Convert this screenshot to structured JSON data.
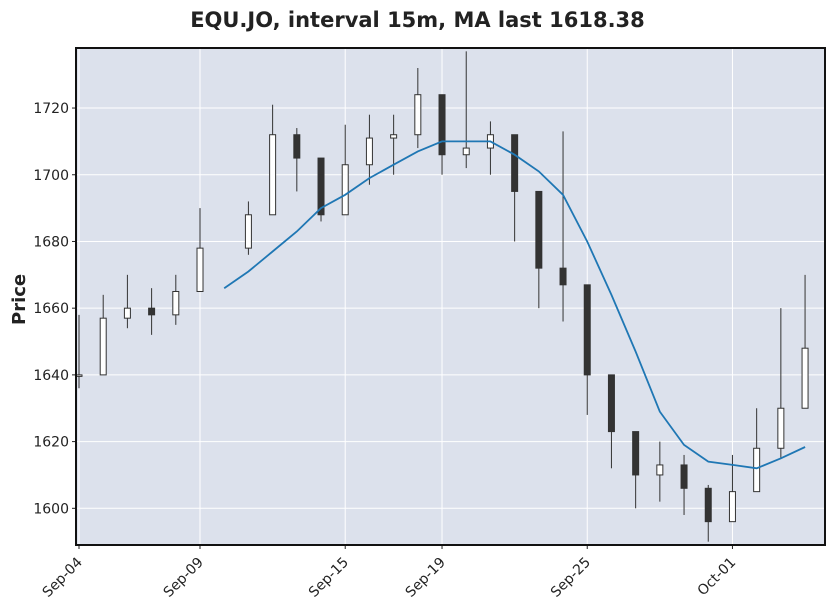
{
  "chart_data": {
    "type": "candlestick",
    "title": "EQU.JO, interval 15m, MA last 1618.38",
    "ylabel": "Price",
    "xlabel": "",
    "ylim": [
      1589,
      1738
    ],
    "yticks": [
      1600,
      1620,
      1640,
      1660,
      1680,
      1700,
      1720
    ],
    "xticks": [
      "Sep-04",
      "Sep-09",
      "Sep-15",
      "Sep-19",
      "Sep-25",
      "Oct-01"
    ],
    "grid": true,
    "colors": {
      "background": "#dce1ec",
      "grid": "#ffffff",
      "candle": "#333333",
      "ma": "#1f77b4"
    },
    "price_series": {
      "name": "close",
      "x": [
        "Sep-04",
        "Sep-05",
        "Sep-06",
        "Sep-07",
        "Sep-08",
        "Sep-09",
        "Sep-11",
        "Sep-12",
        "Sep-13",
        "Sep-14",
        "Sep-15",
        "Sep-16",
        "Sep-17",
        "Sep-18",
        "Sep-19",
        "Sep-20",
        "Sep-21",
        "Sep-22",
        "Sep-23",
        "Sep-24",
        "Sep-25",
        "Sep-26",
        "Sep-27",
        "Sep-28",
        "Sep-29",
        "Sep-30",
        "Oct-01",
        "Oct-02",
        "Oct-03",
        "Oct-04"
      ],
      "values": [
        1640,
        1657,
        1660,
        1658,
        1665,
        1678,
        1688,
        1712,
        1705,
        1688,
        1703,
        1711,
        1712,
        1724,
        1706,
        1708,
        1712,
        1695,
        1672,
        1667,
        1640,
        1623,
        1610,
        1613,
        1606,
        1596,
        1605,
        1618,
        1630,
        1648
      ],
      "high": [
        1658,
        1664,
        1670,
        1666,
        1670,
        1690,
        1692,
        1721,
        1714,
        1700,
        1715,
        1718,
        1718,
        1732,
        1720,
        1737,
        1716,
        1706,
        1684,
        1713,
        1648,
        1640,
        1622,
        1620,
        1616,
        1607,
        1616,
        1630,
        1660,
        1670
      ],
      "low": [
        1636,
        1650,
        1654,
        1652,
        1655,
        1672,
        1676,
        1700,
        1695,
        1686,
        1690,
        1697,
        1700,
        1708,
        1700,
        1702,
        1700,
        1680,
        1660,
        1656,
        1628,
        1612,
        1600,
        1602,
        1598,
        1590,
        1598,
        1605,
        1615,
        1630
      ]
    },
    "ma_series": {
      "name": "MA",
      "x": [
        "Sep-10",
        "Sep-11",
        "Sep-12",
        "Sep-13",
        "Sep-14",
        "Sep-15",
        "Sep-16",
        "Sep-17",
        "Sep-18",
        "Sep-19",
        "Sep-20",
        "Sep-21",
        "Sep-22",
        "Sep-23",
        "Sep-24",
        "Sep-25",
        "Sep-26",
        "Sep-27",
        "Sep-28",
        "Sep-29",
        "Sep-30",
        "Oct-01",
        "Oct-02",
        "Oct-03",
        "Oct-04"
      ],
      "values": [
        1666,
        1671,
        1677,
        1683,
        1690,
        1694,
        1699,
        1703,
        1707,
        1710,
        1710,
        1710,
        1706,
        1701,
        1694,
        1680,
        1664,
        1647,
        1629,
        1619,
        1614,
        1613,
        1612,
        1615,
        1618.38
      ]
    }
  }
}
